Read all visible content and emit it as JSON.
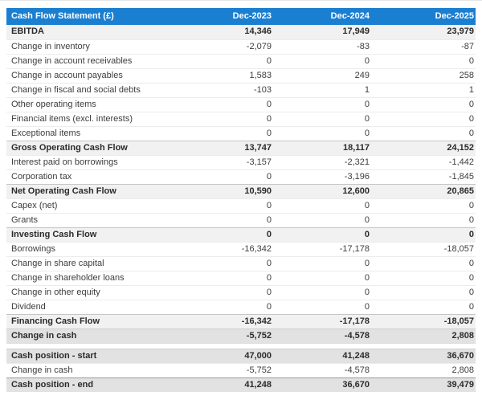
{
  "table": {
    "title": "Cash Flow Statement (£)",
    "columns": [
      "Dec-2023",
      "Dec-2024",
      "Dec-2025"
    ],
    "rows": [
      {
        "label": "EBITDA",
        "values": [
          "14,346",
          "17,949",
          "23,979"
        ],
        "style": "subtotal"
      },
      {
        "label": "Change in inventory",
        "values": [
          "-2,079",
          "-83",
          "-87"
        ],
        "style": "regular"
      },
      {
        "label": "Change in account receivables",
        "values": [
          "0",
          "0",
          "0"
        ],
        "style": "regular"
      },
      {
        "label": "Change in account payables",
        "values": [
          "1,583",
          "249",
          "258"
        ],
        "style": "regular"
      },
      {
        "label": "Change in fiscal and social debts",
        "values": [
          "-103",
          "1",
          "1"
        ],
        "style": "regular"
      },
      {
        "label": "Other operating items",
        "values": [
          "0",
          "0",
          "0"
        ],
        "style": "regular"
      },
      {
        "label": "Financial items (excl. interests)",
        "values": [
          "0",
          "0",
          "0"
        ],
        "style": "regular"
      },
      {
        "label": "Exceptional items",
        "values": [
          "0",
          "0",
          "0"
        ],
        "style": "regular"
      },
      {
        "label": "Gross Operating Cash Flow",
        "values": [
          "13,747",
          "18,117",
          "24,152"
        ],
        "style": "subtotal"
      },
      {
        "label": "Interest paid on borrowings",
        "values": [
          "-3,157",
          "-2,321",
          "-1,442"
        ],
        "style": "regular"
      },
      {
        "label": "Corporation tax",
        "values": [
          "0",
          "-3,196",
          "-1,845"
        ],
        "style": "regular"
      },
      {
        "label": "Net Operating Cash Flow",
        "values": [
          "10,590",
          "12,600",
          "20,865"
        ],
        "style": "subtotal"
      },
      {
        "label": "Capex (net)",
        "values": [
          "0",
          "0",
          "0"
        ],
        "style": "regular"
      },
      {
        "label": "Grants",
        "values": [
          "0",
          "0",
          "0"
        ],
        "style": "regular"
      },
      {
        "label": "Investing Cash Flow",
        "values": [
          "0",
          "0",
          "0"
        ],
        "style": "subtotal"
      },
      {
        "label": "Borrowings",
        "values": [
          "-16,342",
          "-17,178",
          "-18,057"
        ],
        "style": "regular"
      },
      {
        "label": "Change in share capital",
        "values": [
          "0",
          "0",
          "0"
        ],
        "style": "regular"
      },
      {
        "label": "Change in shareholder loans",
        "values": [
          "0",
          "0",
          "0"
        ],
        "style": "regular"
      },
      {
        "label": "Change in other equity",
        "values": [
          "0",
          "0",
          "0"
        ],
        "style": "regular"
      },
      {
        "label": "Dividend",
        "values": [
          "0",
          "0",
          "0"
        ],
        "style": "regular"
      },
      {
        "label": "Financing Cash Flow",
        "values": [
          "-16,342",
          "-17,178",
          "-18,057"
        ],
        "style": "subtotal"
      },
      {
        "label": "Change in cash",
        "values": [
          "-5,752",
          "-4,578",
          "2,808"
        ],
        "style": "highlight"
      },
      {
        "label": "",
        "values": [],
        "style": "spacer"
      },
      {
        "label": "Cash position - start",
        "values": [
          "47,000",
          "41,248",
          "36,670"
        ],
        "style": "highlight"
      },
      {
        "label": "Change in cash",
        "values": [
          "-5,752",
          "-4,578",
          "2,808"
        ],
        "style": "regular"
      },
      {
        "label": "Cash position - end",
        "values": [
          "41,248",
          "36,670",
          "39,479"
        ],
        "style": "highlight-strong"
      }
    ]
  },
  "colors": {
    "header_bg": "#1b7fd1",
    "header_text": "#ffffff",
    "subtotal_row_bg": "#f1f1f1",
    "highlight_row_bg": "#e2e2e2",
    "regular_row_bg": "#ffffff",
    "text": "#3d3d3d"
  }
}
